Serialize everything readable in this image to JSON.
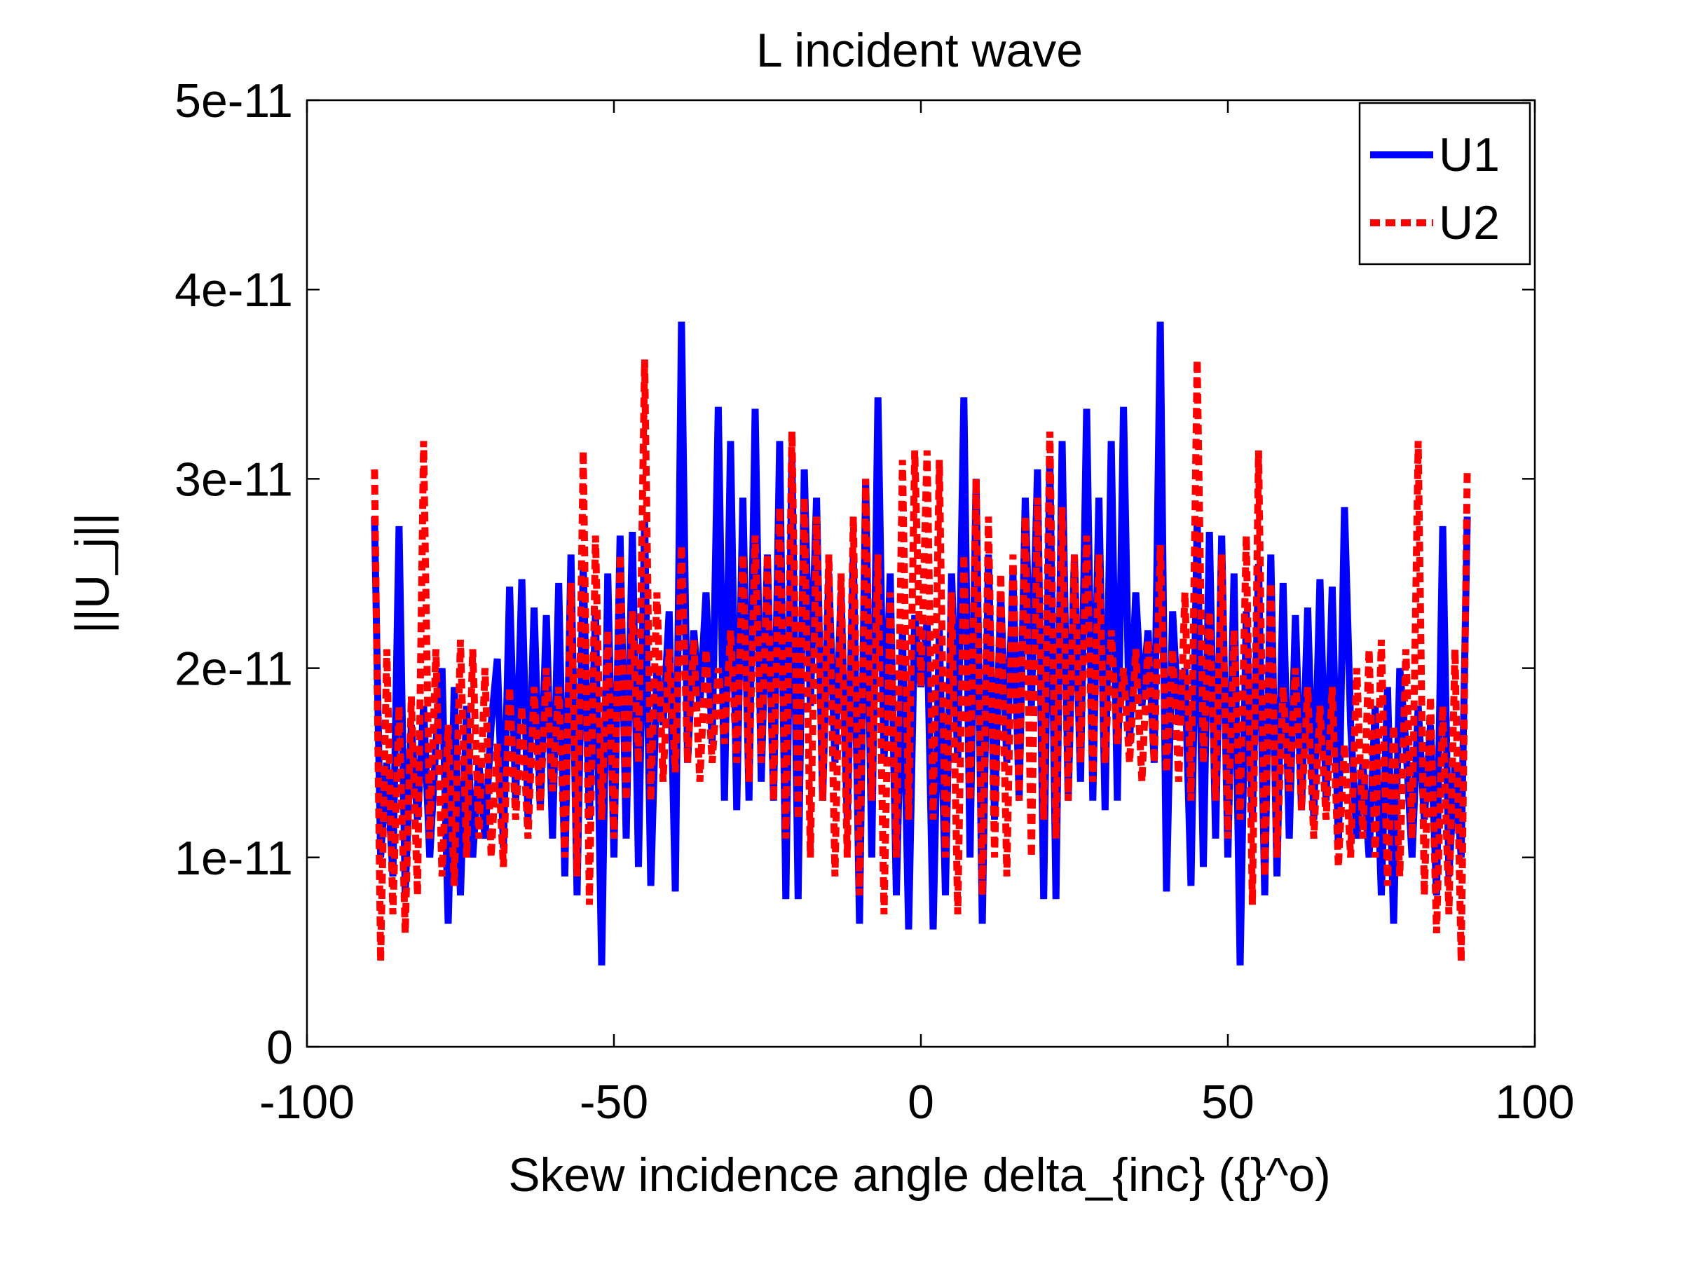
{
  "chart_data": {
    "type": "line",
    "title": "L incident wave",
    "xlabel": "Skew incidence angle delta_{inc} ({}^o)",
    "ylabel": "||U_j||",
    "xlim": [
      -100,
      100
    ],
    "ylim": [
      0,
      5e-11
    ],
    "xticks": [
      -100,
      -50,
      0,
      50,
      100
    ],
    "xtick_labels": [
      "-100",
      "-50",
      "0",
      "50",
      "100"
    ],
    "yticks": [
      0,
      1e-11,
      2e-11,
      3e-11,
      4e-11,
      5e-11
    ],
    "ytick_labels": [
      "0",
      "1e-11",
      "2e-11",
      "3e-11",
      "4e-11",
      "5e-11"
    ],
    "grid": false,
    "legend_position": "top-right",
    "series": [
      {
        "name": "U1",
        "color": "#0000ff",
        "style": "solid",
        "x": [
          -89,
          -88,
          -87,
          -86,
          -85,
          -84,
          -83,
          -82,
          -81,
          -80,
          -79,
          -78,
          -77,
          -76,
          -75,
          -74,
          -73,
          -72,
          -71,
          -70,
          -69,
          -68,
          -67,
          -66,
          -65,
          -64,
          -63,
          -62,
          -61,
          -60,
          -59,
          -58,
          -57,
          -56,
          -55,
          -54,
          -53,
          -52,
          -51,
          -50,
          -49,
          -48,
          -47,
          -46,
          -45,
          -44,
          -43,
          -42,
          -41,
          -40,
          -39,
          -38,
          -37,
          -36,
          -35,
          -34,
          -33,
          -32,
          -31,
          -30,
          -29,
          -28,
          -27,
          -26,
          -25,
          -24,
          -23,
          -22,
          -21,
          -20,
          -19,
          -18,
          -17,
          -16,
          -15,
          -14,
          -13,
          -12,
          -11,
          -10,
          -9,
          -8,
          -7,
          -6,
          -5,
          -4,
          -3,
          -2,
          -1,
          0,
          1,
          2,
          3,
          4,
          5,
          6,
          7,
          8,
          9,
          10,
          11,
          12,
          13,
          14,
          15,
          16,
          17,
          18,
          19,
          20,
          21,
          22,
          23,
          24,
          25,
          26,
          27,
          28,
          29,
          30,
          31,
          32,
          33,
          34,
          35,
          36,
          37,
          38,
          39,
          40,
          41,
          42,
          43,
          44,
          45,
          46,
          47,
          48,
          49,
          50,
          51,
          52,
          53,
          54,
          55,
          56,
          57,
          58,
          59,
          60,
          61,
          62,
          63,
          64,
          65,
          66,
          67,
          68,
          69,
          70,
          71,
          72,
          73,
          74,
          75,
          76,
          77,
          78,
          79,
          80,
          81,
          82,
          83,
          84,
          85,
          86,
          87,
          88,
          89
        ],
        "y": [
          2.8e-11,
          1e-11,
          1.5e-11,
          9e-12,
          2.75e-11,
          8e-12,
          1.7e-11,
          1.2e-11,
          1.8e-11,
          1e-11,
          1.6e-11,
          2e-11,
          6.5e-12,
          1.9e-11,
          8e-12,
          1.8e-11,
          1e-11,
          1.5e-11,
          1.1e-11,
          1.7e-11,
          2.05e-11,
          1.05e-11,
          2.43e-11,
          1.3e-11,
          2.47e-11,
          1.2e-11,
          2.32e-11,
          1.25e-11,
          2.28e-11,
          1.1e-11,
          2.45e-11,
          9e-12,
          2.6e-11,
          8e-12,
          2.55e-11,
          1.2e-11,
          2.3e-11,
          4.3e-12,
          2.5e-11,
          1e-11,
          2.7e-11,
          1.1e-11,
          2.72e-11,
          9.5e-12,
          2.78e-11,
          8.5e-12,
          2e-11,
          1.7e-11,
          2.3e-11,
          8.2e-12,
          3.83e-11,
          1.5e-11,
          2.2e-11,
          1.8e-11,
          2.4e-11,
          1.6e-11,
          3.38e-11,
          1.3e-11,
          3.2e-11,
          1.25e-11,
          2.9e-11,
          1.3e-11,
          3.37e-11,
          1.4e-11,
          2.6e-11,
          1.3e-11,
          3.2e-11,
          7.8e-12,
          3.12e-11,
          7.8e-12,
          3.05e-11,
          1.8e-11,
          2.9e-11,
          1.3e-11,
          2.5e-11,
          1.5e-11,
          2.4e-11,
          1.2e-11,
          2.6e-11,
          6.5e-12,
          3e-11,
          1e-11,
          3.43e-11,
          1.5e-11,
          2.5e-11,
          8e-12,
          2.2e-11,
          6.2e-12,
          2.28e-11,
          1.9e-11,
          2.25e-11,
          6.2e-12,
          2.2e-11,
          8e-12,
          2.5e-11,
          1.5e-11,
          3.43e-11,
          1e-11,
          3e-11,
          6.5e-12,
          2.6e-11,
          1.2e-11,
          2.4e-11,
          1.5e-11,
          2.5e-11,
          1.3e-11,
          2.9e-11,
          1.8e-11,
          3.05e-11,
          7.8e-12,
          3.12e-11,
          7.8e-12,
          3.2e-11,
          1.3e-11,
          2.6e-11,
          1.4e-11,
          3.37e-11,
          1.3e-11,
          2.9e-11,
          1.25e-11,
          3.2e-11,
          1.3e-11,
          3.38e-11,
          1.6e-11,
          2.4e-11,
          1.8e-11,
          2.2e-11,
          1.5e-11,
          3.83e-11,
          8.2e-12,
          2.3e-11,
          1.7e-11,
          2e-11,
          8.5e-12,
          2.78e-11,
          9.5e-12,
          2.72e-11,
          1.1e-11,
          2.7e-11,
          1e-11,
          2.5e-11,
          4.3e-12,
          2.3e-11,
          1.2e-11,
          2.55e-11,
          8e-12,
          2.6e-11,
          9e-12,
          2.45e-11,
          1.1e-11,
          2.28e-11,
          1.25e-11,
          2.32e-11,
          1.2e-11,
          2.47e-11,
          1.3e-11,
          2.43e-11,
          1.05e-11,
          2.85e-11,
          1.7e-11,
          1.1e-11,
          1.5e-11,
          1e-11,
          1.8e-11,
          8e-12,
          1.9e-11,
          6.5e-12,
          2e-11,
          1.6e-11,
          1e-11,
          1.8e-11,
          1.2e-11,
          1.7e-11,
          8e-12,
          2.75e-11,
          9e-12,
          1.5e-11,
          1e-11,
          2.8e-11
        ]
      },
      {
        "name": "U2",
        "color": "#ff0000",
        "style": "dashed",
        "x": [
          -89,
          -88,
          -87,
          -86,
          -85,
          -84,
          -83,
          -82,
          -81,
          -80,
          -79,
          -78,
          -77,
          -76,
          -75,
          -74,
          -73,
          -72,
          -71,
          -70,
          -69,
          -68,
          -67,
          -66,
          -65,
          -64,
          -63,
          -62,
          -61,
          -60,
          -59,
          -58,
          -57,
          -56,
          -55,
          -54,
          -53,
          -52,
          -51,
          -50,
          -49,
          -48,
          -47,
          -46,
          -45,
          -44,
          -43,
          -42,
          -41,
          -40,
          -39,
          -38,
          -37,
          -36,
          -35,
          -34,
          -33,
          -32,
          -31,
          -30,
          -29,
          -28,
          -27,
          -26,
          -25,
          -24,
          -23,
          -22,
          -21,
          -20,
          -19,
          -18,
          -17,
          -16,
          -15,
          -14,
          -13,
          -12,
          -11,
          -10,
          -9,
          -8,
          -7,
          -6,
          -5,
          -4,
          -3,
          -2,
          -1,
          0,
          1,
          2,
          3,
          4,
          5,
          6,
          7,
          8,
          9,
          10,
          11,
          12,
          13,
          14,
          15,
          16,
          17,
          18,
          19,
          20,
          21,
          22,
          23,
          24,
          25,
          26,
          27,
          28,
          29,
          30,
          31,
          32,
          33,
          34,
          35,
          36,
          37,
          38,
          39,
          40,
          41,
          42,
          43,
          44,
          45,
          46,
          47,
          48,
          49,
          50,
          51,
          52,
          53,
          54,
          55,
          56,
          57,
          58,
          59,
          60,
          61,
          62,
          63,
          64,
          65,
          66,
          67,
          68,
          69,
          70,
          71,
          72,
          73,
          74,
          75,
          76,
          77,
          78,
          79,
          80,
          81,
          82,
          83,
          84,
          85,
          86,
          87,
          88,
          89
        ],
        "y": [
          3.05e-11,
          4.5e-12,
          2.1e-11,
          7e-12,
          1.8e-11,
          6e-12,
          1.85e-11,
          8e-12,
          3.2e-11,
          1.1e-11,
          2.1e-11,
          9e-12,
          1.7e-11,
          8.5e-12,
          2.15e-11,
          1e-11,
          2.1e-11,
          1.1e-11,
          2e-11,
          1e-11,
          1.6e-11,
          9.5e-12,
          1.9e-11,
          1.2e-11,
          1.8e-11,
          1.1e-11,
          1.9e-11,
          1.25e-11,
          2e-11,
          1.35e-11,
          1.9e-11,
          1e-11,
          2.45e-11,
          9e-12,
          3.15e-11,
          7.5e-12,
          2.7e-11,
          1.2e-11,
          2.2e-11,
          1.1e-11,
          2.6e-11,
          1.3e-11,
          2.3e-11,
          1.5e-11,
          3.63e-11,
          1.3e-11,
          2.4e-11,
          1.4e-11,
          2.1e-11,
          1.45e-11,
          2.65e-11,
          1.5e-11,
          2.15e-11,
          1.4e-11,
          2.1e-11,
          1.5e-11,
          2e-11,
          1.6e-11,
          2.2e-11,
          1.5e-11,
          2.6e-11,
          1.4e-11,
          2.7e-11,
          1.5e-11,
          2.6e-11,
          1.3e-11,
          2.85e-11,
          1.1e-11,
          3.25e-11,
          1.2e-11,
          2.9e-11,
          1e-11,
          2.8e-11,
          1.3e-11,
          2.6e-11,
          9e-12,
          2.5e-11,
          1e-11,
          2.8e-11,
          8e-12,
          3e-11,
          1.3e-11,
          2.6e-11,
          7e-12,
          2.4e-11,
          1e-11,
          3.1e-11,
          1.2e-11,
          3.15e-11,
          1.9e-11,
          3.15e-11,
          1.2e-11,
          3.1e-11,
          1e-11,
          2.4e-11,
          7e-12,
          2.6e-11,
          1.3e-11,
          3e-11,
          8e-12,
          2.8e-11,
          1e-11,
          2.5e-11,
          9e-12,
          2.6e-11,
          1.3e-11,
          2.8e-11,
          1e-11,
          2.9e-11,
          1.2e-11,
          3.25e-11,
          1.1e-11,
          2.85e-11,
          1.3e-11,
          2.6e-11,
          1.5e-11,
          2.7e-11,
          1.4e-11,
          2.6e-11,
          1.5e-11,
          2.2e-11,
          1.6e-11,
          2e-11,
          1.5e-11,
          2.1e-11,
          1.4e-11,
          2.15e-11,
          1.5e-11,
          2.65e-11,
          1.45e-11,
          2.1e-11,
          1.4e-11,
          2.4e-11,
          1.3e-11,
          3.63e-11,
          1.5e-11,
          2.3e-11,
          1.3e-11,
          2.6e-11,
          1.1e-11,
          2.2e-11,
          1.2e-11,
          2.7e-11,
          7.5e-12,
          3.15e-11,
          9e-12,
          2.45e-11,
          1e-11,
          1.9e-11,
          1.35e-11,
          2e-11,
          1.25e-11,
          1.9e-11,
          1.1e-11,
          1.8e-11,
          1.2e-11,
          1.9e-11,
          9.5e-12,
          1.6e-11,
          1e-11,
          2e-11,
          1.1e-11,
          2.1e-11,
          1e-11,
          2.15e-11,
          8.5e-12,
          1.7e-11,
          9e-12,
          2.1e-11,
          1.1e-11,
          3.2e-11,
          8e-12,
          1.85e-11,
          6e-12,
          1.8e-11,
          7e-12,
          2.1e-11,
          4.5e-12,
          3.05e-11
        ]
      }
    ]
  }
}
